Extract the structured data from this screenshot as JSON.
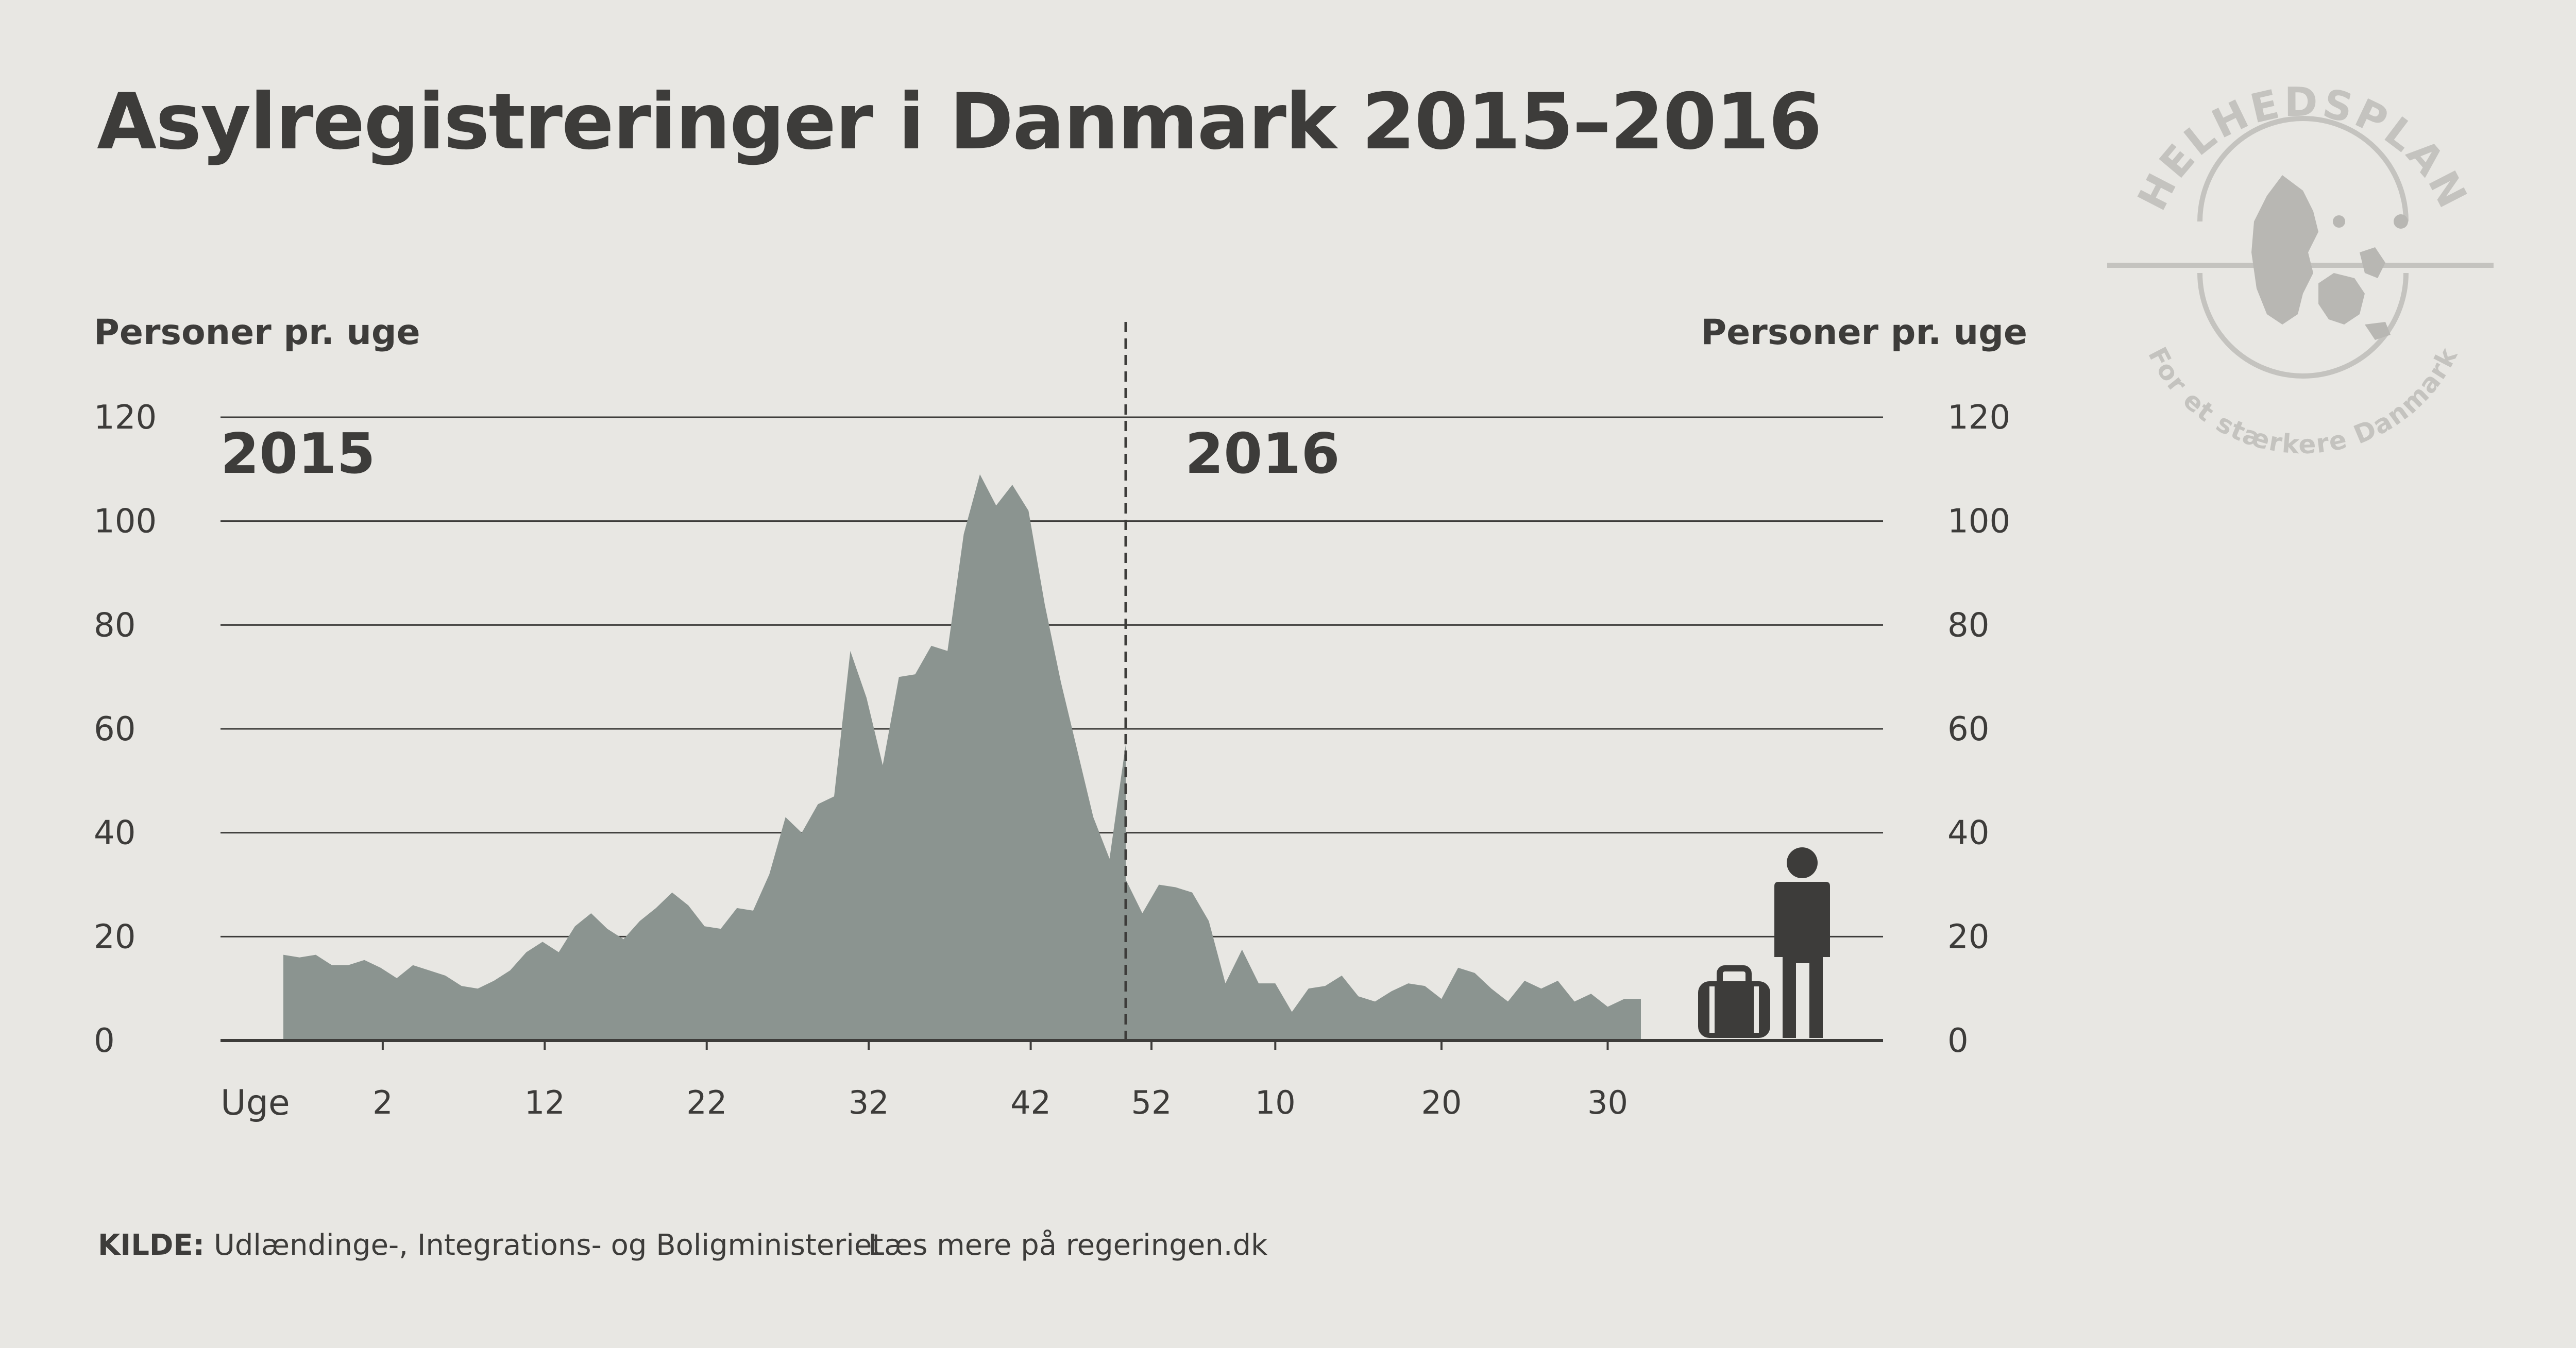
{
  "title": "Asylregistreringer i Danmark 2015–2016",
  "footer": {
    "source_label": "KILDE:",
    "source_text": "Udlændinge-, Integrations- og Boligministeriet",
    "more": "Læs mere på regeringen.dk"
  },
  "logo": {
    "top_text": "HELHEDSPLAN",
    "bottom_text": "For et stærkere Danmark",
    "icon": "denmark-map-icon"
  },
  "chart_data": {
    "type": "area",
    "ylabel_left": "Personer pr. uge",
    "ylabel_right": "Personer pr. uge",
    "xlabel": "Uge",
    "ylim": [
      0,
      120
    ],
    "yticks": [
      0,
      20,
      40,
      60,
      80,
      100,
      120
    ],
    "grid": true,
    "color": "#8b9490",
    "segments": [
      {
        "label": "2015",
        "tick_labels": [
          {
            "week": 2,
            "label": "2"
          },
          {
            "week": 12,
            "label": "12"
          },
          {
            "week": 22,
            "label": "22"
          },
          {
            "week": 32,
            "label": "32"
          },
          {
            "week": 42,
            "label": "42"
          },
          {
            "week": 52,
            "label": "52"
          }
        ]
      },
      {
        "label": "2016",
        "tick_labels": [
          {
            "week": 10,
            "label": "10"
          },
          {
            "week": 20,
            "label": "20"
          },
          {
            "week": 30,
            "label": "30"
          }
        ]
      }
    ],
    "series": [
      {
        "name": "2015",
        "weeks": [
          0,
          1,
          2,
          3,
          4,
          5,
          6,
          7,
          8,
          9,
          10,
          11,
          12,
          13,
          14,
          15,
          16,
          17,
          18,
          19,
          20,
          21,
          22,
          23,
          24,
          25,
          26,
          27,
          28,
          29,
          30,
          31,
          32,
          33,
          34,
          35,
          36,
          37,
          38,
          39,
          40,
          41,
          42,
          43,
          44,
          45,
          46,
          47,
          48,
          49,
          50,
          51,
          52
        ],
        "values": [
          16.5,
          16,
          16.5,
          14.5,
          14.5,
          15.5,
          14,
          12,
          14.5,
          13.5,
          12.5,
          10.5,
          10,
          11.5,
          13.5,
          17,
          19,
          17,
          22,
          24.5,
          21.5,
          19.5,
          23,
          25.5,
          28.5,
          26,
          22,
          21.5,
          25.5,
          25,
          32,
          43,
          40,
          45.5,
          47,
          75,
          66,
          53,
          70,
          70.5,
          76,
          75,
          97.5,
          109,
          103,
          107,
          102,
          84,
          69,
          56,
          43,
          35,
          57
        ]
      },
      {
        "name": "2016",
        "weeks": [
          1,
          2,
          3,
          4,
          5,
          6,
          7,
          8,
          9,
          10,
          11,
          12,
          13,
          14,
          15,
          16,
          17,
          18,
          19,
          20,
          21,
          22,
          23,
          24,
          25,
          26,
          27,
          28,
          29,
          30,
          31,
          32
        ],
        "values": [
          31,
          24.5,
          30,
          29.5,
          28.5,
          23,
          11,
          17.5,
          11,
          11,
          5.5,
          10,
          10.5,
          12.5,
          8.5,
          7.5,
          9.5,
          11,
          10.5,
          8,
          14,
          13,
          10,
          7.5,
          11.5,
          10,
          11.5,
          7.5,
          9,
          6.5,
          8,
          8
        ]
      }
    ]
  }
}
